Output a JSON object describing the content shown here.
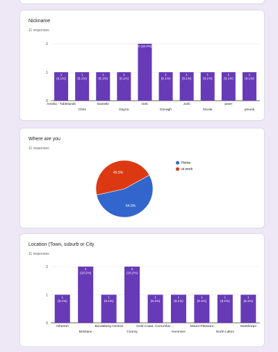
{
  "cards": [
    {
      "title": "Nickname",
      "responses": "11 responses",
      "chart_data": {
        "type": "bar",
        "categories": [
          "Amelia - Tablelands",
          "Chris",
          "Danielle",
          "Dayna",
          "Deb",
          "Donagh",
          "Josh",
          "Nicole",
          "peter",
          "pmusk"
        ],
        "values": [
          1,
          1,
          1,
          1,
          2,
          1,
          1,
          1,
          1,
          1
        ],
        "data_labels": [
          "1\n(9.1%)",
          "1\n(9.1%)",
          "1\n(9.1%)",
          "1\n(9.1%)",
          "2 (18.2%)",
          "1\n(9.1%)",
          "1\n(9.1%)",
          "1\n(9.1%)",
          "1\n(9.1%)",
          "1\n(9.1%)"
        ],
        "yticks": [
          "0",
          "1",
          "2"
        ],
        "ylim": [
          0,
          2
        ],
        "color": "#673ab7"
      }
    },
    {
      "title": "Where are you",
      "responses": "11 responses",
      "chart_data": {
        "type": "pie",
        "categories": [
          "Home",
          "at work"
        ],
        "values": [
          54.5,
          45.5
        ],
        "data_labels": [
          "54.5%",
          "45.5%"
        ],
        "colors": [
          "#3366cc",
          "#dc3912"
        ],
        "legend_position": "right"
      }
    },
    {
      "title": "Location (Town, suburb or City",
      "responses": "11 responses",
      "chart_data": {
        "type": "bar",
        "categories": [
          "Atherton",
          "Brisbane",
          "Bundaberg Central",
          "Cooroy",
          "Gold Coast, Currumbin ...",
          "Kenmore",
          "Mount Pleasant",
          "North Lakes",
          "Stanthorpe"
        ],
        "values": [
          1,
          2,
          1,
          2,
          1,
          1,
          1,
          1,
          1
        ],
        "data_labels": [
          "1\n(9.1%)",
          "2\n(18.2%)",
          "1\n(9.1%)",
          "2\n(18.2%)",
          "1\n(9.1%)",
          "1\n(9.1%)",
          "1\n(9.1%)",
          "1\n(9.1%)",
          "1\n(9.1%)"
        ],
        "yticks": [
          "0",
          "1",
          "2"
        ],
        "ylim": [
          0,
          2
        ],
        "color": "#673ab7"
      }
    }
  ]
}
